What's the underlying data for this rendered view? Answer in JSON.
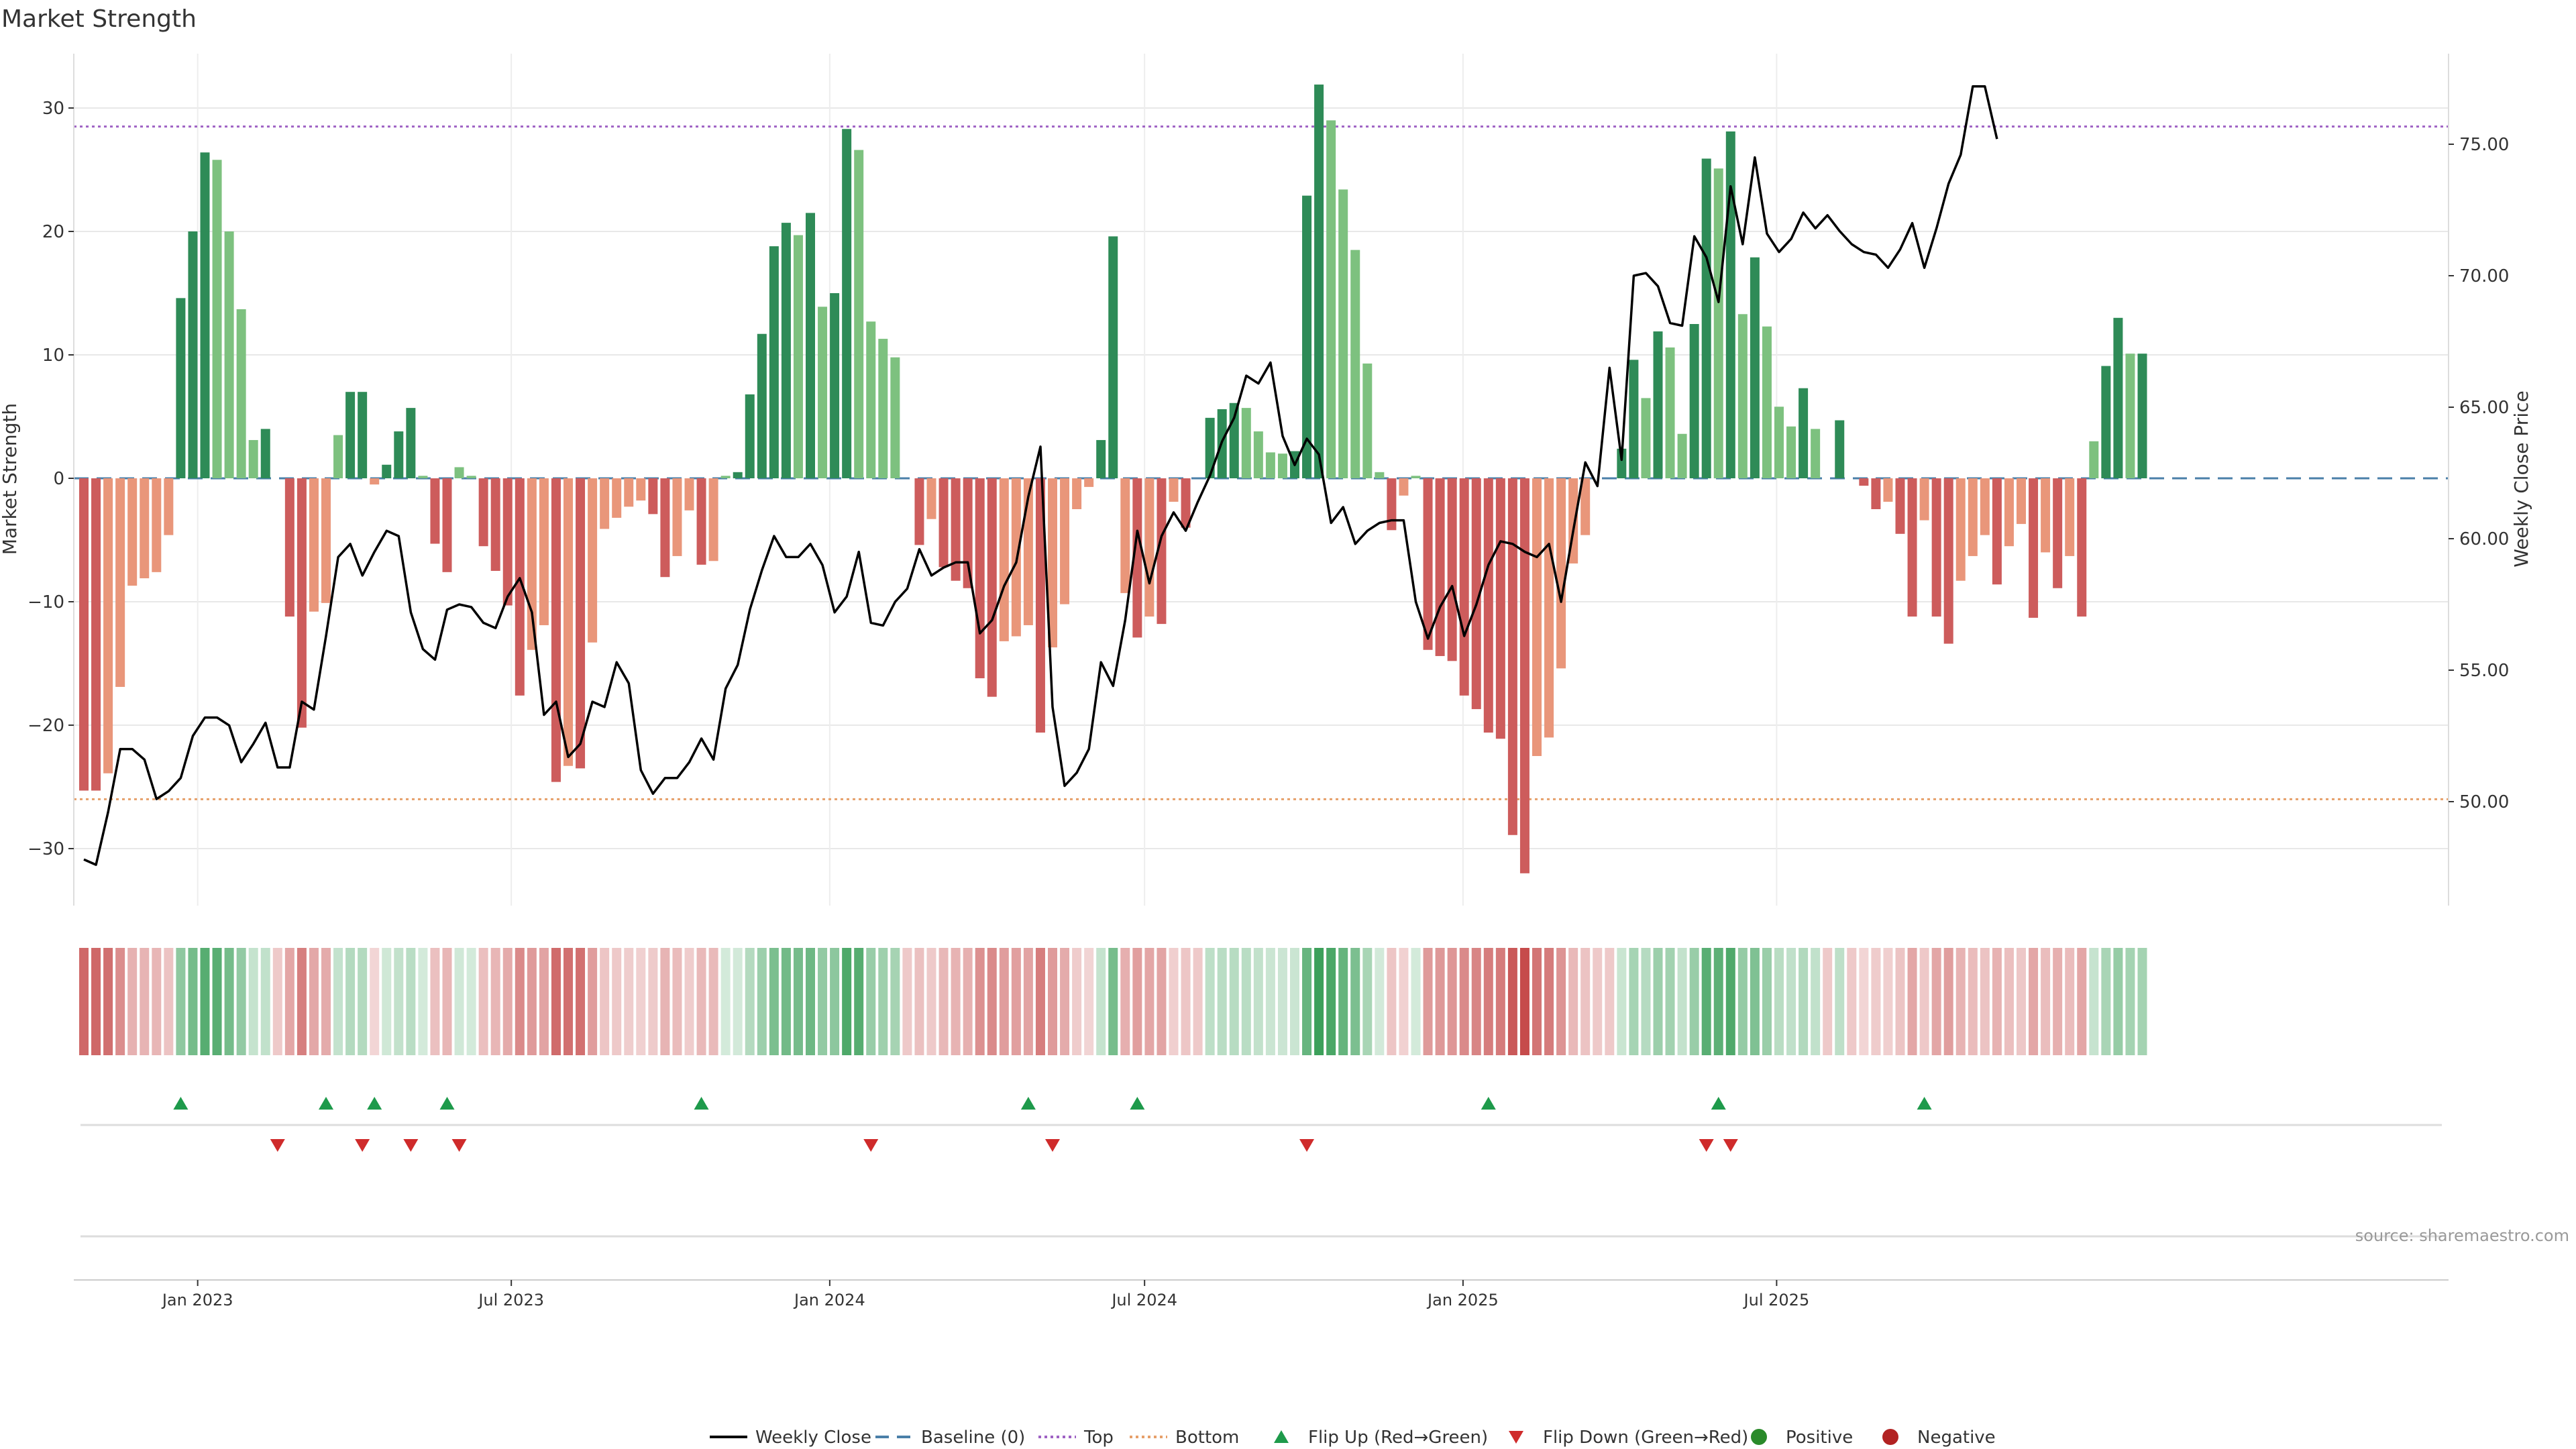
{
  "chart_data": {
    "type": "bar",
    "title": "Market Strength",
    "ylabel_left": "Market Strength",
    "ylabel_right": "Weekly Close Price",
    "ylim_left": [
      -34,
      35
    ],
    "ylim_right": [
      46.5,
      78.3
    ],
    "left_ticks": [
      "30",
      "20",
      "10",
      "0",
      "−10",
      "−20",
      "−30"
    ],
    "right_ticks": [
      "75.00",
      "70.00",
      "65.00",
      "60.00",
      "55.00",
      "50.00"
    ],
    "x_tick_labels": [
      "Jan 2023",
      "Jul 2023",
      "Jan 2024",
      "Jul 2024",
      "Jan 2025",
      "Jul 2025"
    ],
    "x_tick_weeks": [
      9.4,
      35.3,
      61.6,
      87.6,
      113.9,
      139.8
    ],
    "grid": true,
    "top_level": 28.5,
    "bottom_level": -26,
    "strength": [
      -25.3,
      -25.3,
      -23.9,
      -16.9,
      -8.7,
      -8.1,
      -7.6,
      -4.6,
      14.6,
      20.0,
      26.4,
      25.8,
      20.0,
      13.7,
      3.1,
      4.0,
      0,
      -11.2,
      -20.2,
      -10.8,
      -10.1,
      3.5,
      7.0,
      7.0,
      -0.5,
      1.1,
      3.8,
      5.7,
      0.2,
      -5.3,
      -7.6,
      0.9,
      0.2,
      -5.5,
      -7.5,
      -10.3,
      -17.6,
      -13.9,
      -11.9,
      -24.6,
      -23.3,
      -23.5,
      -13.3,
      -4.1,
      -3.2,
      -2.3,
      -1.8,
      -2.9,
      -8.0,
      -6.3,
      -2.6,
      -7.0,
      -6.7,
      0.2,
      0.5,
      6.8,
      11.7,
      18.8,
      20.7,
      19.7,
      21.5,
      13.9,
      15.0,
      28.3,
      26.6,
      12.7,
      11.3,
      9.8,
      0,
      -5.4,
      -3.3,
      -7.2,
      -8.3,
      -8.9,
      -16.2,
      -17.7,
      -13.2,
      -12.8,
      -11.9,
      -20.6,
      -13.7,
      -10.2,
      -2.5,
      -0.7,
      3.1,
      19.6,
      -9.3,
      -12.9,
      -11.2,
      -11.8,
      -1.9,
      -4.0,
      0,
      4.9,
      5.6,
      6.1,
      5.7,
      3.8,
      2.1,
      2.0,
      2.2,
      22.9,
      31.9,
      29.0,
      23.4,
      18.5,
      9.3,
      0.5,
      -4.2,
      -1.4,
      0.2,
      -13.9,
      -14.4,
      -14.8,
      -17.6,
      -18.7,
      -20.6,
      -21.1,
      -28.9,
      -32.0,
      -22.5,
      -21.0,
      -15.4,
      -6.9,
      -4.6,
      0,
      0,
      2.4,
      9.6,
      6.5,
      11.9,
      10.6,
      3.6,
      12.5,
      25.9,
      25.1,
      28.1,
      13.3,
      17.9,
      12.3,
      5.8,
      4.2,
      7.3,
      4.0,
      0,
      4.7,
      0,
      -0.6,
      -2.5,
      -1.9,
      -4.5,
      -11.2,
      -3.4,
      -11.2,
      -13.4,
      -8.3,
      -6.3,
      -4.6,
      -8.6,
      -5.5,
      -3.7,
      -11.3,
      -6.0,
      -8.9,
      -6.3,
      -11.2,
      3.0,
      9.1,
      13.0,
      10.1,
      10.1
    ],
    "weekly_close": [
      47.8,
      47.6,
      49.6,
      52.0,
      52.0,
      51.6,
      50.1,
      50.4,
      50.9,
      52.5,
      53.2,
      53.2,
      52.9,
      51.5,
      52.2,
      53.0,
      51.3,
      51.3,
      53.8,
      53.5,
      56.3,
      59.3,
      59.8,
      58.6,
      59.5,
      60.3,
      60.1,
      57.2,
      55.8,
      55.4,
      57.3,
      57.5,
      57.4,
      56.8,
      56.6,
      57.8,
      58.5,
      57.2,
      53.3,
      53.8,
      51.7,
      52.2,
      53.8,
      53.6,
      55.3,
      54.5,
      51.2,
      50.3,
      50.9,
      50.9,
      51.5,
      52.4,
      51.6,
      54.3,
      55.2,
      57.3,
      58.8,
      60.1,
      59.3,
      59.3,
      59.8,
      59.0,
      57.2,
      57.8,
      59.5,
      56.8,
      56.7,
      57.6,
      58.1,
      59.6,
      58.6,
      58.9,
      59.1,
      59.1,
      56.4,
      56.9,
      58.2,
      59.1,
      61.6,
      63.5,
      53.6,
      50.6,
      51.1,
      52.0,
      55.3,
      54.4,
      56.9,
      60.3,
      58.3,
      60.1,
      61.0,
      60.3,
      61.4,
      62.4,
      63.7,
      64.6,
      66.2,
      65.9,
      66.7,
      63.9,
      62.8,
      63.8,
      63.2,
      60.6,
      61.2,
      59.8,
      60.3,
      60.6,
      60.7,
      60.7,
      57.6,
      56.2,
      57.4,
      58.2,
      56.3,
      57.5,
      59.0,
      59.9,
      59.8,
      59.5,
      59.3,
      59.8,
      57.6,
      60.3,
      62.9,
      62.0,
      66.5,
      63.0,
      70.0,
      70.1,
      69.6,
      68.2,
      68.1,
      71.5,
      70.7,
      69.0,
      73.4,
      71.2,
      74.5,
      71.6,
      70.9,
      71.4,
      72.4,
      71.8,
      72.3,
      71.7,
      71.2,
      70.9,
      70.8,
      70.3,
      71.0,
      72.0,
      70.3,
      71.8,
      73.5,
      74.6,
      77.2,
      77.2,
      75.2
    ],
    "flip_up_weeks": [
      8,
      20,
      24,
      30,
      51,
      78,
      87,
      116,
      135,
      152
    ],
    "flip_down_weeks": [
      16,
      23,
      27,
      31,
      65,
      80,
      101,
      134,
      136
    ],
    "source": "source: sharemaestro.com",
    "legend_position": "bottom",
    "legend": [
      {
        "label": "Weekly Close",
        "symbol": "line",
        "color": "#000000"
      },
      {
        "label": "Baseline (0)",
        "symbol": "dash",
        "color": "#4a7fa8"
      },
      {
        "label": "Top",
        "symbol": "dot",
        "color": "#9f62c4"
      },
      {
        "label": "Bottom",
        "symbol": "dot",
        "color": "#e6a06a"
      },
      {
        "label": "Flip Up (Red→Green)",
        "symbol": "tri-up",
        "color": "#1e9a4b"
      },
      {
        "label": "Flip Down (Green→Red)",
        "symbol": "tri-down",
        "color": "#cf2b2b"
      },
      {
        "label": "Positive",
        "symbol": "circle",
        "color": "#2a8a2a"
      },
      {
        "label": "Negative",
        "symbol": "circle",
        "color": "#b22222"
      }
    ],
    "colors": {
      "pos_strong": "#2e8b57",
      "pos_weak": "#7dc17f",
      "neg_strong": "#cd5c5c",
      "neg_weak": "#e9967a",
      "line": "#000000",
      "baseline": "#4a7fa8",
      "top": "#9f62c4",
      "bottom": "#e6a06a",
      "flip_up": "#1e9a4b",
      "flip_down": "#cf2b2b"
    }
  }
}
